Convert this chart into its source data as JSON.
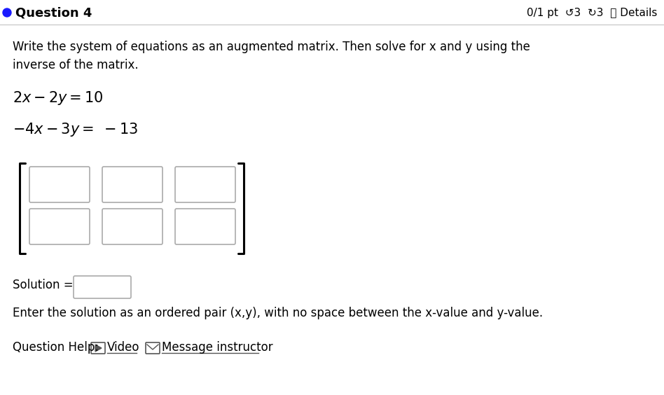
{
  "title_left": "Question 4",
  "title_right": "0/1 pt  ↺3  ↻3  ⓘ Details",
  "instruction": "Write the system of equations as an augmented matrix. Then solve for x and y using the\ninverse of the matrix.",
  "eq1": "$2x - 2y = 10$",
  "eq2": "$-4x - 3y = \\ -13$",
  "solution_label": "Solution =",
  "enter_text": "Enter the solution as an ordered pair (x,y), with no space between the x-value and y-value.",
  "help_text_prefix": "Question Help: ",
  "help_video": "Video",
  "help_message": "Message instructor",
  "bg_color": "#ffffff",
  "text_color": "#000000",
  "dot_color": "#1a1aff",
  "box_border_color": "#aaaaaa",
  "header_line_color": "#cccccc",
  "underline_color": "#555555"
}
